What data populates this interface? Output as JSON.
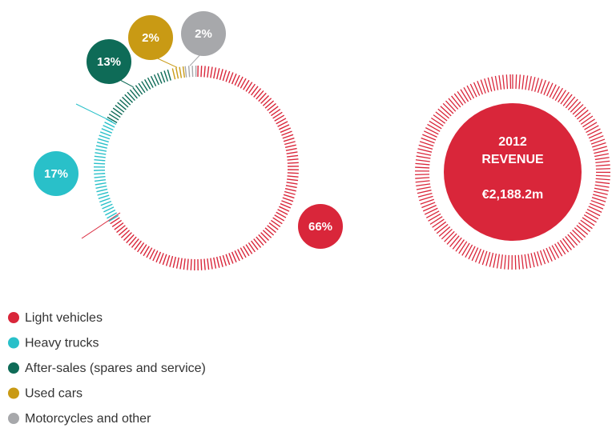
{
  "chart_data": {
    "type": "pie",
    "categories": [
      "Light vehicles",
      "Heavy trucks",
      "After-sales (spares and service)",
      "Used cars",
      "Motorcycles and other"
    ],
    "values": [
      66,
      17,
      13,
      2,
      2
    ],
    "value_labels": [
      "66%",
      "17%",
      "13%",
      "2%",
      "2%"
    ],
    "colors": [
      "#d9263a",
      "#29c0c9",
      "#0e6b57",
      "#c99a14",
      "#a7a8ab"
    ],
    "center_text": [
      "2012",
      "REVENUE",
      "€2,188.2m"
    ]
  }
}
